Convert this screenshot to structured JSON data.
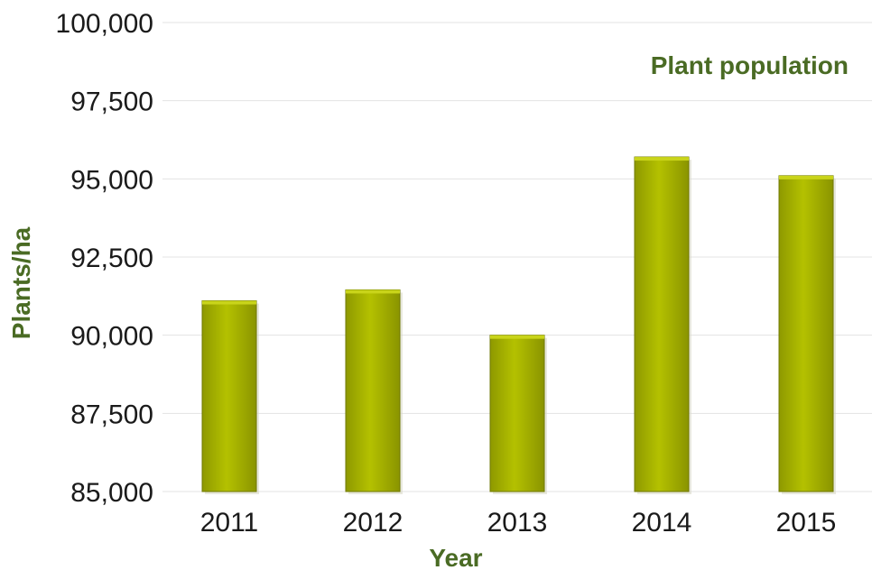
{
  "chart_data": {
    "type": "bar",
    "title": "Plant population",
    "xlabel": "Year",
    "ylabel": "Plants/ha",
    "categories": [
      "2011",
      "2012",
      "2013",
      "2014",
      "2015"
    ],
    "values": [
      91100,
      91450,
      90000,
      95700,
      95100
    ],
    "ylim": [
      85000,
      100000
    ],
    "yticks": [
      85000,
      87500,
      90000,
      92500,
      95000,
      97500,
      100000
    ],
    "ytick_labels": [
      "85,000",
      "87,500",
      "90,000",
      "92,500",
      "95,000",
      "97,500",
      "100,000"
    ],
    "grid": true,
    "legend": "none",
    "bar_color": "#a8b400",
    "title_color": "#4a6b24"
  }
}
